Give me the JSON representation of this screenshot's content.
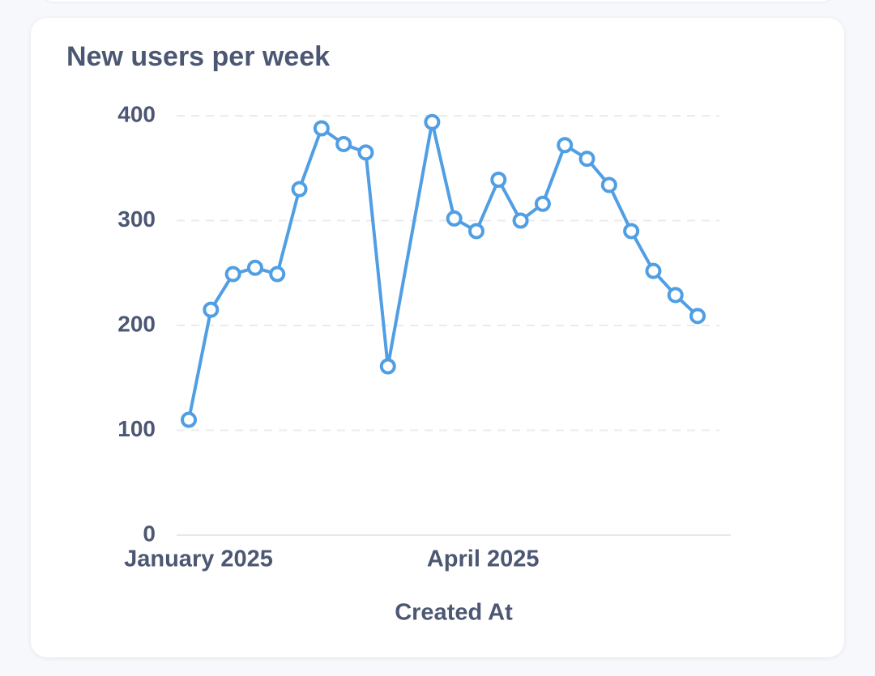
{
  "chart_data": {
    "type": "line",
    "title": "New users per week",
    "x_label": "Created At",
    "x": [
      0,
      1,
      2,
      3,
      4,
      5,
      6,
      7,
      8,
      9,
      11,
      12,
      13,
      14,
      15,
      16,
      17,
      18,
      19,
      20,
      21,
      22,
      23
    ],
    "values": [
      110,
      215,
      249,
      255,
      249,
      330,
      388,
      373,
      365,
      161,
      394,
      302,
      290,
      339,
      300,
      316,
      372,
      359,
      334,
      290,
      252,
      229,
      209
    ],
    "color": "#509ee3",
    "xlim": [
      -0.55,
      24.5
    ],
    "xticks": [
      {
        "value": 0.44,
        "label": "January 2025"
      },
      {
        "value": 13.3,
        "label": "April 2025"
      }
    ],
    "ylim": [
      0,
      400
    ],
    "yticks": [
      0,
      100,
      200,
      300,
      400
    ],
    "grid": true
  }
}
